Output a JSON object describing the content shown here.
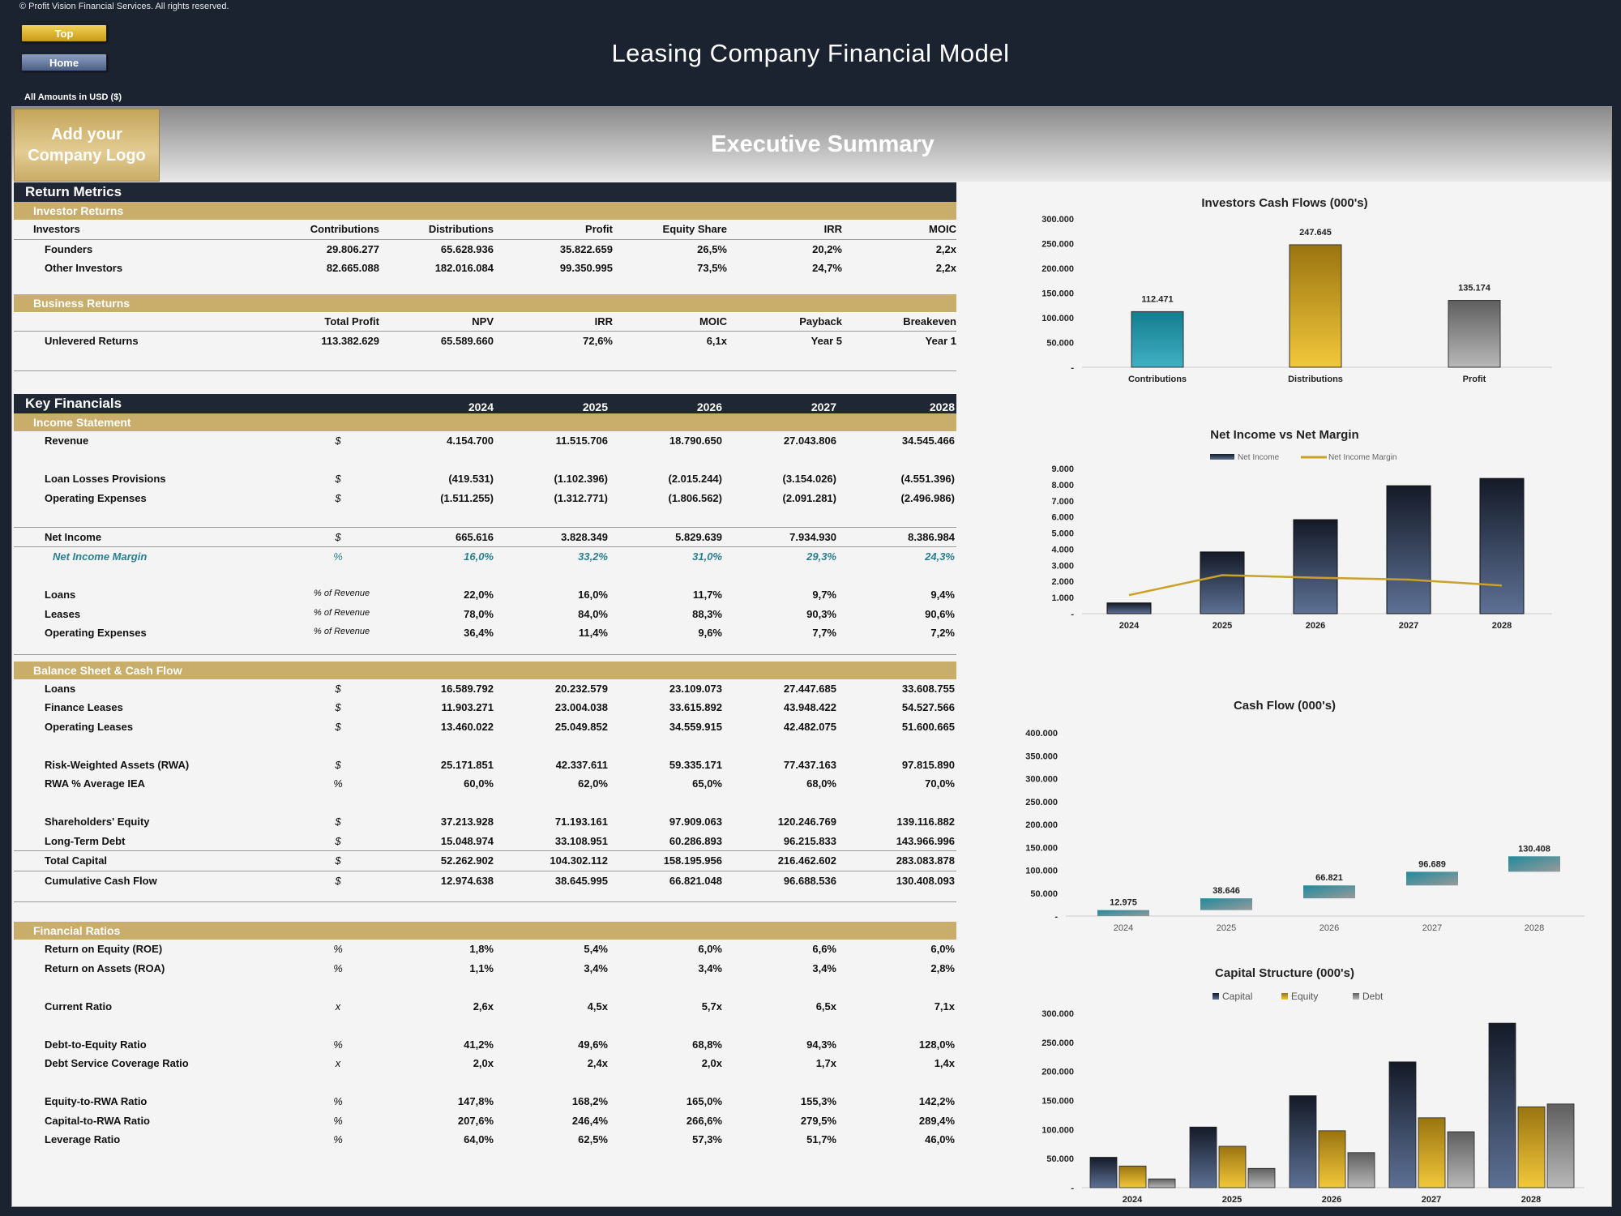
{
  "copyright": "© Profit Vision Financial Services. All rights reserved.",
  "nav": {
    "top": "Top",
    "home": "Home"
  },
  "title": "Leasing Company Financial Model",
  "amounts_note": "All Amounts in  USD ($)",
  "logo_text": "Add your\nCompany Logo",
  "summary_title": "Executive Summary",
  "return_metrics": {
    "title": "Return Metrics",
    "investor_returns": {
      "title": "Investor Returns",
      "headers": [
        "Investors",
        "Contributions",
        "Distributions",
        "Profit",
        "Equity Share",
        "IRR",
        "MOIC"
      ],
      "rows": [
        [
          "Founders",
          "29.806.277",
          "65.628.936",
          "35.822.659",
          "26,5%",
          "20,2%",
          "2,2x"
        ],
        [
          "Other Investors",
          "82.665.088",
          "182.016.084",
          "99.350.995",
          "73,5%",
          "24,7%",
          "2,2x"
        ]
      ]
    },
    "business_returns": {
      "title": "Business Returns",
      "headers": [
        "",
        "Total Profit",
        "NPV",
        "IRR",
        "MOIC",
        "Payback",
        "Breakeven"
      ],
      "rows": [
        [
          "Unlevered Returns",
          "113.382.629",
          "65.589.660",
          "72,6%",
          "6,1x",
          "Year 5",
          "Year 1"
        ]
      ]
    }
  },
  "key_financials": {
    "title": "Key Financials",
    "years": [
      "2024",
      "2025",
      "2026",
      "2027",
      "2028"
    ],
    "income_statement": {
      "title": "Income Statement",
      "rows": [
        {
          "label": "Revenue",
          "unit": "$",
          "values": [
            "4.154.700",
            "11.515.706",
            "18.790.650",
            "27.043.806",
            "34.545.466"
          ]
        },
        {
          "label": "Loan Losses Provisions",
          "unit": "$",
          "values": [
            "(419.531)",
            "(1.102.396)",
            "(2.015.244)",
            "(3.154.026)",
            "(4.551.396)"
          ]
        },
        {
          "label": "Operating Expenses",
          "unit": "$",
          "values": [
            "(1.511.255)",
            "(1.312.771)",
            "(1.806.562)",
            "(2.091.281)",
            "(2.496.986)"
          ]
        },
        {
          "label": "Net Income",
          "unit": "$",
          "values": [
            "665.616",
            "3.828.349",
            "5.829.639",
            "7.934.930",
            "8.386.984"
          ]
        },
        {
          "label": "Net Income Margin",
          "unit": "%",
          "values": [
            "16,0%",
            "33,2%",
            "31,0%",
            "29,3%",
            "24,3%"
          ]
        },
        {
          "label": "Loans",
          "unit": "% of Revenue",
          "values": [
            "22,0%",
            "16,0%",
            "11,7%",
            "9,7%",
            "9,4%"
          ]
        },
        {
          "label": "Leases",
          "unit": "% of Revenue",
          "values": [
            "78,0%",
            "84,0%",
            "88,3%",
            "90,3%",
            "90,6%"
          ]
        },
        {
          "label": "Operating Expenses",
          "unit": "% of Revenue",
          "values": [
            "36,4%",
            "11,4%",
            "9,6%",
            "7,7%",
            "7,2%"
          ]
        }
      ]
    },
    "balance_sheet": {
      "title": "Balance Sheet & Cash Flow",
      "rows": [
        {
          "label": "Loans",
          "unit": "$",
          "values": [
            "16.589.792",
            "20.232.579",
            "23.109.073",
            "27.447.685",
            "33.608.755"
          ]
        },
        {
          "label": "Finance Leases",
          "unit": "$",
          "values": [
            "11.903.271",
            "23.004.038",
            "33.615.892",
            "43.948.422",
            "54.527.566"
          ]
        },
        {
          "label": "Operating Leases",
          "unit": "$",
          "values": [
            "13.460.022",
            "25.049.852",
            "34.559.915",
            "42.482.075",
            "51.600.665"
          ]
        },
        {
          "label": "Risk-Weighted Assets (RWA)",
          "unit": "$",
          "values": [
            "25.171.851",
            "42.337.611",
            "59.335.171",
            "77.437.163",
            "97.815.890"
          ]
        },
        {
          "label": "RWA % Average IEA",
          "unit": "%",
          "values": [
            "60,0%",
            "62,0%",
            "65,0%",
            "68,0%",
            "70,0%"
          ]
        },
        {
          "label": "Shareholders' Equity",
          "unit": "$",
          "values": [
            "37.213.928",
            "71.193.161",
            "97.909.063",
            "120.246.769",
            "139.116.882"
          ]
        },
        {
          "label": "Long-Term Debt",
          "unit": "$",
          "values": [
            "15.048.974",
            "33.108.951",
            "60.286.893",
            "96.215.833",
            "143.966.996"
          ]
        },
        {
          "label": "Total Capital",
          "unit": "$",
          "values": [
            "52.262.902",
            "104.302.112",
            "158.195.956",
            "216.462.602",
            "283.083.878"
          ]
        },
        {
          "label": "Cumulative Cash Flow",
          "unit": "$",
          "values": [
            "12.974.638",
            "38.645.995",
            "66.821.048",
            "96.688.536",
            "130.408.093"
          ]
        }
      ]
    },
    "financial_ratios": {
      "title": "Financial Ratios",
      "rows": [
        {
          "label": "Return on Equity (ROE)",
          "unit": "%",
          "values": [
            "1,8%",
            "5,4%",
            "6,0%",
            "6,6%",
            "6,0%"
          ]
        },
        {
          "label": "Return on Assets (ROA)",
          "unit": "%",
          "values": [
            "1,1%",
            "3,4%",
            "3,4%",
            "3,4%",
            "2,8%"
          ]
        },
        {
          "label": "Current Ratio",
          "unit": "x",
          "values": [
            "2,6x",
            "4,5x",
            "5,7x",
            "6,5x",
            "7,1x"
          ]
        },
        {
          "label": "Debt-to-Equity Ratio",
          "unit": "%",
          "values": [
            "41,2%",
            "49,6%",
            "68,8%",
            "94,3%",
            "128,0%"
          ]
        },
        {
          "label": "Debt Service Coverage Ratio",
          "unit": "x",
          "values": [
            "2,0x",
            "2,4x",
            "2,0x",
            "1,7x",
            "1,4x"
          ]
        },
        {
          "label": "Equity-to-RWA Ratio",
          "unit": "%",
          "values": [
            "147,8%",
            "168,2%",
            "165,0%",
            "155,3%",
            "142,2%"
          ]
        },
        {
          "label": "Capital-to-RWA Ratio",
          "unit": "%",
          "values": [
            "207,6%",
            "246,4%",
            "266,6%",
            "279,5%",
            "289,4%"
          ]
        },
        {
          "label": "Leverage Ratio",
          "unit": "%",
          "values": [
            "64,0%",
            "62,5%",
            "57,3%",
            "51,7%",
            "46,0%"
          ]
        }
      ]
    }
  },
  "colors": {
    "navy": "#1f2634",
    "gold": "#c9ad6b",
    "teal": "#2a8a9c",
    "yellow": "#e3b321",
    "gray": "#8a8a8a"
  },
  "chart_data": [
    {
      "type": "bar",
      "title": "Investors Cash Flows (000's)",
      "categories": [
        "Contributions",
        "Distributions",
        "Profit"
      ],
      "values": [
        112471,
        247645,
        135174
      ],
      "value_labels": [
        "112.471",
        "247.645",
        "135.174"
      ],
      "y_ticks": [
        "-",
        "50.000",
        "100.000",
        "150.000",
        "200.000",
        "250.000",
        "300.000"
      ],
      "ylim": [
        0,
        300000
      ]
    },
    {
      "type": "bar",
      "title": "Net Income vs Net Margin",
      "categories": [
        "2024",
        "2025",
        "2026",
        "2027",
        "2028"
      ],
      "series": [
        {
          "name": "Net Income",
          "values": [
            666,
            3828,
            5830,
            7935,
            8387
          ]
        },
        {
          "name": "Net Income Margin",
          "values": [
            16.0,
            33.2,
            31.0,
            29.3,
            24.3
          ]
        }
      ],
      "y_ticks": [
        "-",
        "1.000",
        "2.000",
        "3.000",
        "4.000",
        "5.000",
        "6.000",
        "7.000",
        "8.000",
        "9.000"
      ],
      "ylim": [
        0,
        9000
      ],
      "legend": "top"
    },
    {
      "type": "bar",
      "title": "Cash Flow (000's)",
      "categories": [
        "2024",
        "2025",
        "2026",
        "2027",
        "2028"
      ],
      "values": [
        12975,
        38646,
        66821,
        96689,
        130408
      ],
      "value_labels": [
        "12.975",
        "38.646",
        "66.821",
        "96.689",
        "130.408"
      ],
      "y_ticks": [
        "-",
        "50.000",
        "100.000",
        "150.000",
        "200.000",
        "250.000",
        "300.000",
        "350.000",
        "400.000"
      ],
      "ylim": [
        0,
        400000
      ]
    },
    {
      "type": "bar",
      "title": "Capital Structure (000's)",
      "categories": [
        "2024",
        "2025",
        "2026",
        "2027",
        "2028"
      ],
      "series": [
        {
          "name": "Capital",
          "values": [
            52263,
            104302,
            158196,
            216463,
            283084
          ]
        },
        {
          "name": "Equity",
          "values": [
            37214,
            71193,
            97909,
            120247,
            139117
          ]
        },
        {
          "name": "Debt",
          "values": [
            15049,
            33109,
            60287,
            96216,
            143967
          ]
        }
      ],
      "y_ticks": [
        "-",
        "50.000",
        "100.000",
        "150.000",
        "200.000",
        "250.000",
        "300.000"
      ],
      "ylim": [
        0,
        300000
      ],
      "legend": "top"
    }
  ]
}
